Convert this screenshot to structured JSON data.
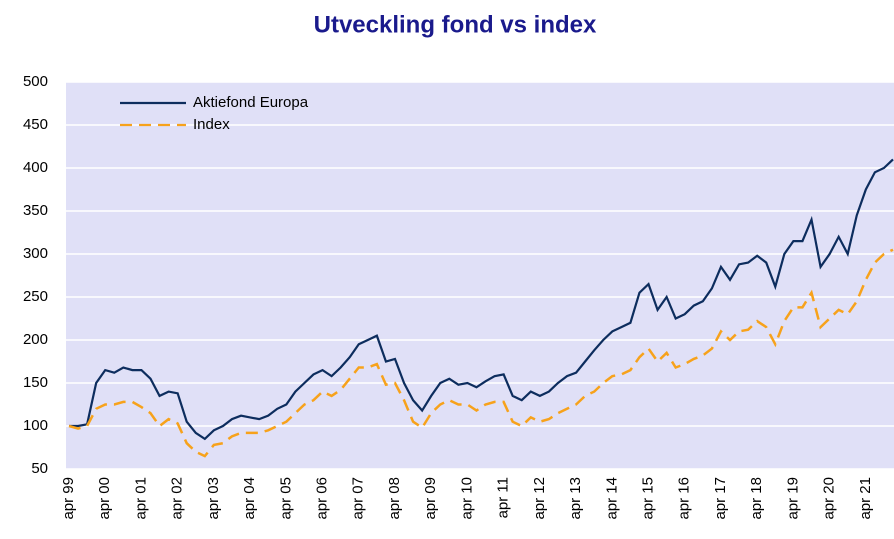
{
  "chart_data": {
    "type": "line",
    "title": "Utveckling fond vs index",
    "categories": [
      "apr 99",
      null,
      null,
      null,
      "apr 00",
      null,
      null,
      null,
      "apr 01",
      null,
      null,
      null,
      "apr 02",
      null,
      null,
      null,
      "apr 03",
      null,
      null,
      null,
      "apr 04",
      null,
      null,
      null,
      "apr 05",
      null,
      null,
      null,
      "apr 06",
      null,
      null,
      null,
      "apr 07",
      null,
      null,
      null,
      "apr 08",
      null,
      null,
      null,
      "apr 09",
      null,
      null,
      null,
      "apr 10",
      null,
      null,
      null,
      "apr 11",
      null,
      null,
      null,
      "apr 12",
      null,
      null,
      null,
      "apr 13",
      null,
      null,
      null,
      "apr 14",
      null,
      null,
      null,
      "apr 15",
      null,
      null,
      null,
      "apr 16",
      null,
      null,
      null,
      "apr 17",
      null,
      null,
      null,
      "apr 18",
      null,
      null,
      null,
      "apr 19",
      null,
      null,
      null,
      "apr 20",
      null,
      null,
      null,
      "apr 21",
      null,
      null,
      null
    ],
    "series": [
      {
        "name": "Aktiefond Europa",
        "color": "#0d2d5e",
        "dash": "solid",
        "values": [
          100,
          100,
          102,
          150,
          165,
          162,
          168,
          165,
          165,
          155,
          135,
          140,
          138,
          105,
          92,
          85,
          95,
          100,
          108,
          112,
          110,
          108,
          112,
          120,
          125,
          140,
          150,
          160,
          165,
          158,
          168,
          180,
          195,
          200,
          205,
          175,
          178,
          150,
          130,
          118,
          135,
          150,
          155,
          148,
          150,
          145,
          152,
          158,
          160,
          135,
          130,
          140,
          135,
          140,
          150,
          158,
          162,
          175,
          188,
          200,
          210,
          215,
          220,
          255,
          265,
          235,
          250,
          225,
          230,
          240,
          245,
          260,
          285,
          270,
          288,
          290,
          298,
          290,
          262,
          300,
          315,
          315,
          340,
          285,
          300,
          320,
          300,
          345,
          375,
          395,
          400,
          410
        ]
      },
      {
        "name": "Index",
        "color": "#f7a21b",
        "dash": "dashed",
        "values": [
          100,
          97,
          100,
          120,
          125,
          125,
          128,
          128,
          122,
          115,
          100,
          108,
          103,
          80,
          70,
          65,
          78,
          80,
          88,
          92,
          92,
          92,
          95,
          100,
          105,
          115,
          125,
          130,
          140,
          135,
          142,
          155,
          168,
          168,
          172,
          148,
          150,
          130,
          105,
          98,
          115,
          125,
          130,
          125,
          125,
          118,
          125,
          128,
          128,
          105,
          100,
          110,
          105,
          108,
          115,
          120,
          125,
          135,
          140,
          150,
          158,
          160,
          165,
          180,
          190,
          175,
          185,
          168,
          172,
          178,
          182,
          190,
          210,
          200,
          210,
          212,
          222,
          215,
          195,
          222,
          238,
          238,
          255,
          215,
          225,
          235,
          230,
          245,
          270,
          290,
          300,
          305
        ]
      }
    ],
    "ylim": [
      50,
      500
    ],
    "yticks": [
      50,
      100,
      150,
      200,
      250,
      300,
      350,
      400,
      450,
      500
    ],
    "grid": true,
    "legend": "upper left"
  }
}
